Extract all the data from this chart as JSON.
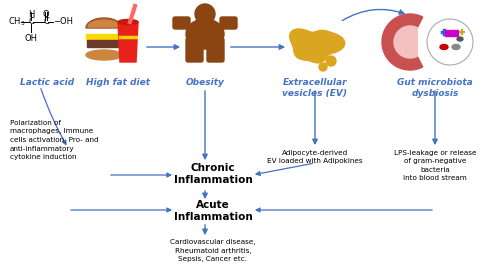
{
  "bg_color": "#ffffff",
  "arrow_color": "#4472c4",
  "blue": "#4472c4",
  "black": "#000000",
  "brown": "#8B4513",
  "brown_light": "#A0522D",
  "red_cup": "#DC143C",
  "gold": "#DAA520",
  "yellow": "#FFD700",
  "pink_gut": "#E8A0A0",
  "lactic_acid_label": "Lactic acid",
  "hfd_label": "High fat diet",
  "obesity_label": "Obesity",
  "ev_label": "Extracellular\nvesicles (EV)",
  "gut_label": "Gut microbiota\ndysbiosis",
  "polarization_text": "Polarization of\nmacrophages, Immune\ncells activation, Pro- and\nanti-inflammatory\ncytokine induction",
  "adipocyte_text": "Adipocyte-derived\nEV loaded with Adipokines",
  "lps_text": "LPS-leakage or release\nof gram-negative\nbacteria\nInto blood stream",
  "chronic_text": "Chronic\nInflammation",
  "acute_text": "Acute\nInflammation",
  "disease_text": "Cardiovascular disease,\nRheumatoid arthritis,\nSepsis, Cancer etc.",
  "figsize": [
    5.0,
    2.68
  ],
  "dpi": 100
}
